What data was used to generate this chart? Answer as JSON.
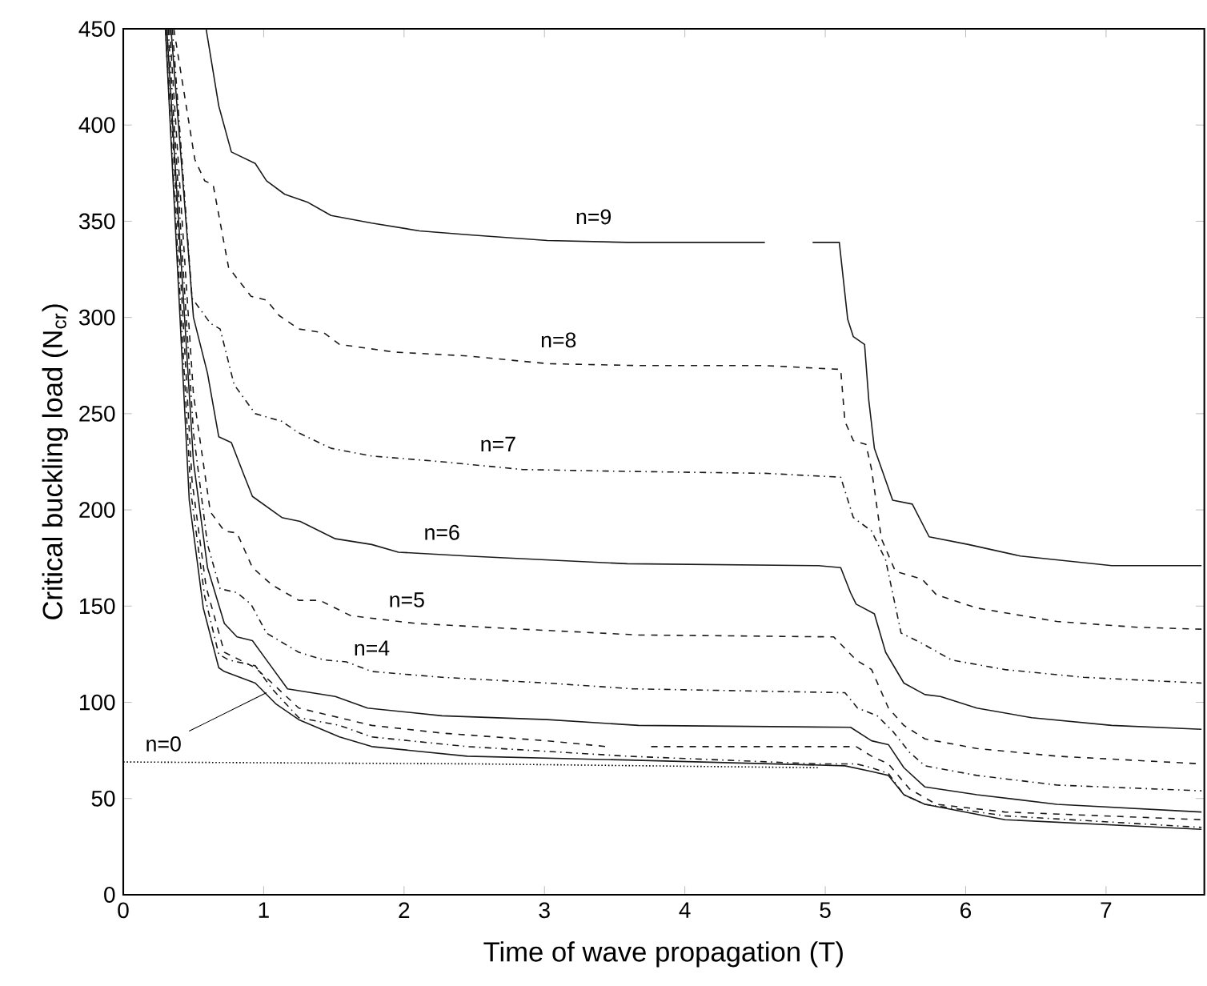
{
  "chart_data": {
    "type": "line",
    "xlabel": "Time  of  wave propagation (T)",
    "ylabel": "Critical  buckling  load (N$_{cr}$)",
    "xlim": [
      0,
      7.7
    ],
    "ylim": [
      0,
      450
    ],
    "xticks": [
      0,
      1,
      2,
      3,
      4,
      5,
      6,
      7
    ],
    "yticks": [
      0,
      50,
      100,
      150,
      200,
      250,
      300,
      350,
      400,
      450
    ],
    "grid": false,
    "series": [
      {
        "color": "#1a1a1a",
        "line_style": "solid",
        "x": [
          0.3,
          0.47,
          0.57,
          0.68,
          0.72,
          0.83,
          0.94,
          1.09,
          1.25,
          1.54,
          1.77,
          2.45,
          3.59,
          5.14,
          5.33,
          5.45,
          5.56,
          5.71,
          6.28,
          7.68
        ],
        "values": [
          450,
          205,
          149,
          118,
          116,
          113,
          110,
          99,
          91,
          82,
          77,
          72,
          70,
          67,
          64,
          62,
          52,
          47,
          39,
          34
        ]
      },
      {
        "color": "#1a1a1a",
        "line_style": "dashdot",
        "x": [
          0.3,
          0.48,
          0.58,
          0.68,
          0.75,
          0.94,
          1.06,
          1.25,
          1.54,
          1.77,
          2.45,
          3.59,
          4.95,
          5.22,
          5.33,
          5.45,
          5.56,
          5.71,
          6.28,
          7.68
        ],
        "values": [
          450,
          210,
          155,
          125,
          122,
          119,
          107,
          92,
          88,
          82,
          77,
          72,
          68,
          68,
          66,
          63,
          52,
          47,
          41,
          35
        ]
      },
      {
        "color": "#1a1a1a",
        "line_style": "dashed",
        "x": [
          0.31,
          0.49,
          0.59,
          0.72,
          0.83,
          0.94,
          1.06,
          1.25,
          1.54,
          1.77,
          2.27,
          3.02,
          3.44,
          3.6,
          3.76,
          5.22,
          5.33,
          5.45,
          5.6,
          5.79,
          6.28,
          7.68
        ],
        "values": [
          450,
          215,
          160,
          126,
          122,
          118,
          110,
          97,
          92,
          88,
          84,
          80,
          77,
          null,
          77,
          77,
          72,
          68,
          55,
          47,
          43,
          39
        ]
      },
      {
        "color": "#1a1a1a",
        "line_style": "solid",
        "x": [
          0.31,
          0.5,
          0.6,
          0.72,
          0.81,
          0.92,
          1.02,
          1.17,
          1.51,
          1.74,
          2.27,
          3.02,
          3.67,
          5.18,
          5.33,
          5.45,
          5.56,
          5.71,
          6.08,
          6.65,
          7.68
        ],
        "values": [
          450,
          225,
          170,
          141,
          134,
          132,
          122,
          107,
          103,
          97,
          93,
          91,
          88,
          87,
          80,
          78,
          66,
          56,
          52,
          47,
          43
        ]
      },
      {
        "color": "#1a1a1a",
        "line_style": "dashdot",
        "x": [
          0.32,
          0.5,
          0.6,
          0.69,
          0.81,
          0.91,
          1.02,
          1.25,
          1.43,
          1.59,
          1.77,
          2.27,
          3.02,
          3.63,
          5.14,
          5.23,
          5.37,
          5.48,
          5.6,
          5.71,
          6.08,
          6.65,
          7.68
        ],
        "values": [
          450,
          240,
          182,
          159,
          157,
          151,
          136,
          126,
          122,
          121,
          116,
          113,
          110,
          107,
          105,
          97,
          93,
          85,
          74,
          67,
          62,
          57,
          54
        ]
      },
      {
        "color": "#1a1a1a",
        "line_style": "dashed",
        "x": [
          0.33,
          0.5,
          0.62,
          0.72,
          0.81,
          0.92,
          1.06,
          1.25,
          1.4,
          1.62,
          2.08,
          2.84,
          3.67,
          5.06,
          5.22,
          5.33,
          5.45,
          5.56,
          5.71,
          6.08,
          6.65,
          7.68
        ],
        "values": [
          450,
          260,
          199,
          189,
          188,
          170,
          161,
          153,
          153,
          145,
          141,
          138,
          135,
          134,
          122,
          117,
          97,
          88,
          81,
          76,
          72,
          68
        ]
      },
      {
        "color": "#1a1a1a",
        "line_style": "solid",
        "x": [
          0.34,
          0.5,
          0.6,
          0.68,
          0.77,
          0.86,
          0.92,
          1.13,
          1.26,
          1.51,
          1.77,
          1.96,
          2.45,
          3.59,
          4.95,
          5.11,
          5.18,
          5.22,
          5.35,
          5.43,
          5.56,
          5.71,
          5.82,
          6.08,
          6.47,
          7.04,
          7.68
        ],
        "values": [
          450,
          300,
          271,
          238,
          235,
          218,
          207,
          196,
          194,
          185,
          182,
          178,
          176,
          172,
          171,
          170,
          157,
          151,
          146,
          126,
          110,
          104,
          103,
          97,
          92,
          88,
          86
        ]
      },
      {
        "color": "#1a1a1a",
        "line_style": "dashdot",
        "x": [
          0.35,
          0.45,
          0.49,
          0.62,
          0.69,
          0.79,
          0.94,
          1.13,
          1.25,
          1.48,
          1.77,
          2.27,
          2.84,
          3.59,
          4.57,
          5.11,
          5.2,
          5.33,
          5.43,
          5.54,
          5.68,
          5.9,
          6.28,
          6.84,
          7.68
        ],
        "values": [
          450,
          350,
          310,
          297,
          294,
          265,
          250,
          246,
          240,
          232,
          228,
          225,
          221,
          220,
          219,
          217,
          196,
          189,
          174,
          136,
          131,
          122,
          117,
          113,
          110
        ]
      },
      {
        "color": "#1a1a1a",
        "line_style": "dashed",
        "x": [
          0.36,
          0.51,
          0.58,
          0.64,
          0.75,
          0.91,
          1.02,
          1.11,
          1.25,
          1.43,
          1.54,
          1.93,
          2.45,
          3.02,
          3.67,
          4.57,
          5.11,
          5.14,
          5.2,
          5.29,
          5.33,
          5.4,
          5.5,
          5.69,
          5.79,
          6.08,
          6.65,
          7.22,
          7.68
        ],
        "values": [
          450,
          382,
          371,
          369,
          326,
          311,
          309,
          301,
          294,
          292,
          286,
          282,
          280,
          276,
          275,
          275,
          273,
          246,
          236,
          234,
          221,
          185,
          168,
          164,
          156,
          149,
          142,
          139,
          138
        ]
      },
      {
        "color": "#1a1a1a",
        "line_style": "solid",
        "x": [
          0.59,
          0.68,
          0.77,
          0.94,
          1.02,
          1.15,
          1.31,
          1.48,
          1.77,
          2.11,
          2.45,
          3.02,
          3.59,
          4.57,
          4.75,
          4.91,
          5.1,
          5.16,
          5.2,
          5.28,
          5.31,
          5.35,
          5.48,
          5.62,
          5.74,
          6.02,
          6.39,
          7.04,
          7.68
        ],
        "values": [
          450,
          410,
          386,
          380,
          371,
          364,
          360,
          353,
          349,
          345,
          343,
          340,
          339,
          339,
          null,
          339,
          339,
          299,
          290,
          286,
          257,
          232,
          205,
          203,
          186,
          182,
          176,
          171,
          171
        ]
      },
      {
        "color": "#000000",
        "line_style": "dotted",
        "x": [
          0,
          2.5,
          4.95
        ],
        "values": [
          69,
          68,
          66
        ]
      }
    ],
    "annotations": [
      {
        "text": "n=9",
        "x": 3.35,
        "y": 340
      },
      {
        "text": "n=8",
        "x": 3.1,
        "y": 276
      },
      {
        "text": "n=7",
        "x": 2.67,
        "y": 222
      },
      {
        "text": "n=6",
        "x": 2.27,
        "y": 176
      },
      {
        "text": "n=5",
        "x": 2.02,
        "y": 141
      },
      {
        "text": "n=4",
        "x": 1.77,
        "y": 116
      },
      {
        "text": "n=0",
        "x": 1.02,
        "y": 105
      }
    ]
  }
}
